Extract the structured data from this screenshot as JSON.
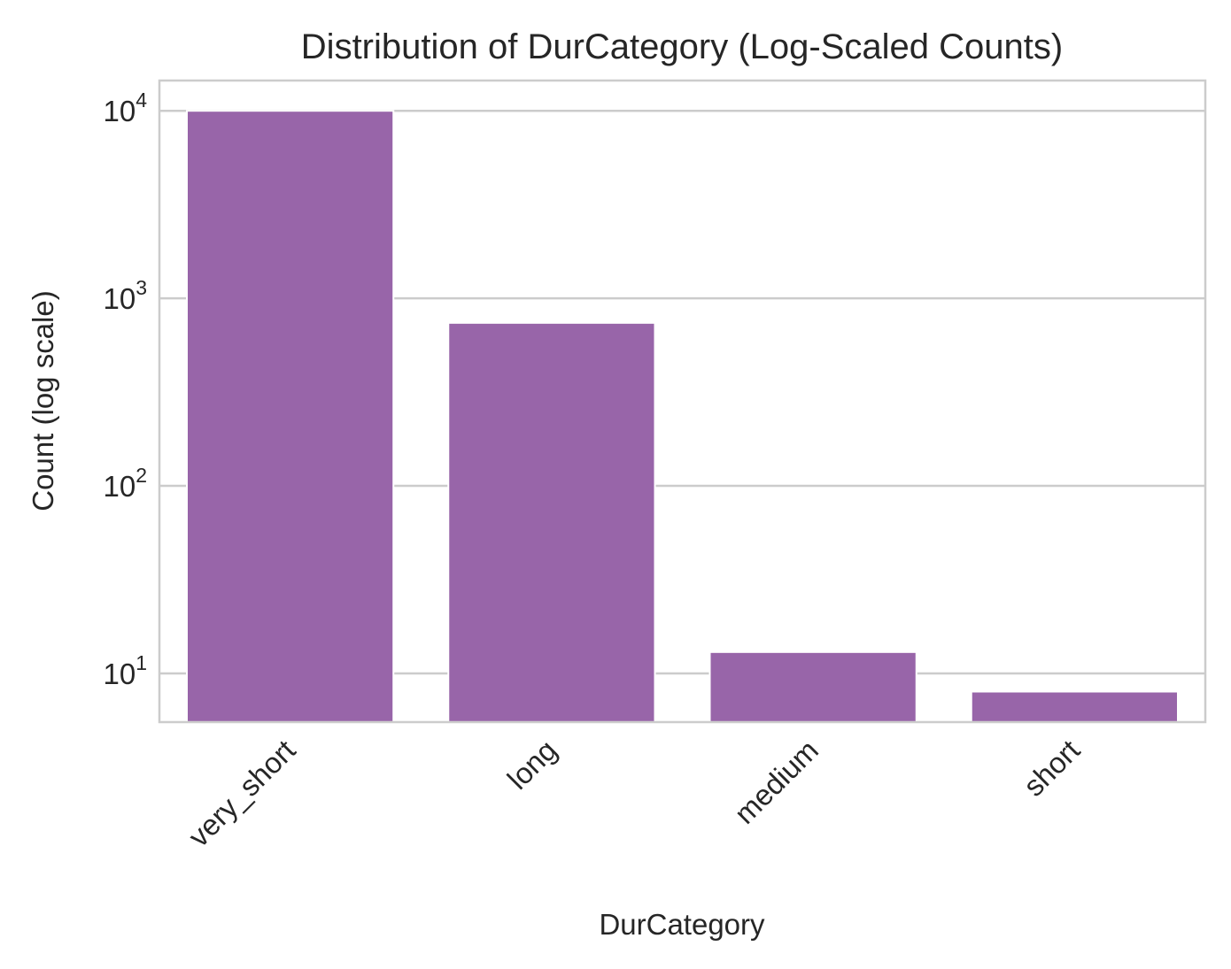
{
  "chart_data": {
    "type": "bar",
    "title": "Distribution of DurCategory (Log-Scaled Counts)",
    "xlabel": "DurCategory",
    "ylabel": "Count (log scale)",
    "yscale": "log",
    "ylim": [
      5.5,
      14500
    ],
    "yticks": [
      {
        "value": 10,
        "base": "10",
        "exp": "1"
      },
      {
        "value": 100,
        "base": "10",
        "exp": "2"
      },
      {
        "value": 1000,
        "base": "10",
        "exp": "3"
      },
      {
        "value": 10000,
        "base": "10",
        "exp": "4"
      }
    ],
    "categories": [
      "very_short",
      "long",
      "medium",
      "short"
    ],
    "values": [
      10000,
      740,
      13,
      8
    ],
    "bar_color": "#9865a9",
    "grid": true,
    "grid_axis": "y",
    "x_tick_rotation": "45"
  }
}
